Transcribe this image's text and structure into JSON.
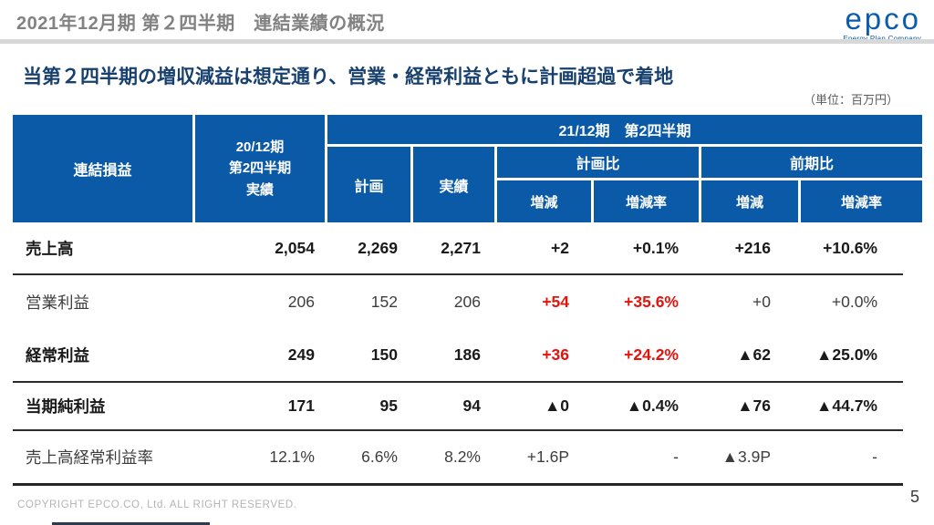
{
  "page": {
    "header_title": "2021年12月期 第２四半期　連結業績の概況",
    "logo_text": "epco",
    "logo_tagline": "Energy Plan Company",
    "slide_title": "当第２四半期の増収減益は想定通り、営業・経常利益ともに計画超過で着地",
    "unit_note": "（単位：百万円）",
    "footer_copyright": "COPYRIGHT EPCO.CO, Ltd. ALL RIGHT RESERVED.",
    "page_number": "5"
  },
  "colors": {
    "header_blue": "#0b5aa8",
    "title_navy": "#17406e",
    "accent_red": "#e8120b",
    "header_gray": "#828282"
  },
  "table": {
    "header": {
      "corner": "連結損益",
      "prev": "20/12期\n第2四半期\n実績",
      "group": "21/12期　第2四半期",
      "plan": "計画",
      "actual": "実績",
      "vs_plan": "計画比",
      "vs_prev": "前期比",
      "diff": "増減",
      "rate": "増減率"
    },
    "rows": [
      {
        "label": "売上高",
        "row_class": "bold",
        "cells": [
          "2,054",
          "2,269",
          "2,271",
          "+2",
          "+0.1%",
          "+216",
          "+10.6%"
        ],
        "cell_classes": [
          "",
          "",
          "",
          "",
          "",
          "",
          ""
        ]
      },
      {
        "label": "営業利益",
        "row_class": "normal",
        "cells": [
          "206",
          "152",
          "206",
          "+54",
          "+35.6%",
          "+0",
          "+0.0%"
        ],
        "cell_classes": [
          "",
          "",
          "",
          "red",
          "red",
          "",
          ""
        ]
      },
      {
        "label": "経常利益",
        "row_class": "bold",
        "cells": [
          "249",
          "150",
          "186",
          "+36",
          "+24.2%",
          "▲62",
          "▲25.0%"
        ],
        "cell_classes": [
          "",
          "",
          "",
          "red",
          "red",
          "",
          ""
        ]
      },
      {
        "label": "当期純利益",
        "row_class": "bold",
        "cells": [
          "171",
          "95",
          "94",
          "▲0",
          "▲0.4%",
          "▲76",
          "▲44.7%"
        ],
        "cell_classes": [
          "",
          "",
          "",
          "",
          "",
          "",
          ""
        ]
      },
      {
        "label": "売上高経常利益率",
        "row_class": "normal",
        "cells": [
          "12.1%",
          "6.6%",
          "8.2%",
          "+1.6P",
          "-",
          "▲3.9P",
          "-"
        ],
        "cell_classes": [
          "",
          "",
          "",
          "",
          "",
          "",
          ""
        ]
      }
    ]
  }
}
